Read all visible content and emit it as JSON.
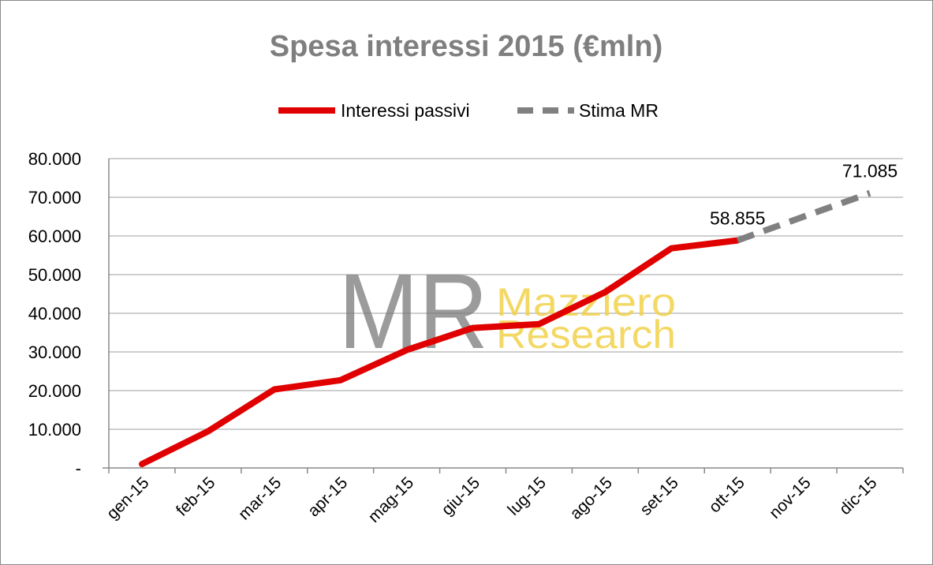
{
  "chart_data": {
    "type": "line",
    "title": "Spesa interessi 2015 (€mln)",
    "categories": [
      "gen-15",
      "feb-15",
      "mar-15",
      "apr-15",
      "mag-15",
      "giu-15",
      "lug-15",
      "ago-15",
      "set-15",
      "ott-15",
      "nov-15",
      "dic-15"
    ],
    "yticks": [
      "-",
      "10.000",
      "20.000",
      "30.000",
      "40.000",
      "50.000",
      "60.000",
      "70.000",
      "80.000"
    ],
    "ylim": [
      0,
      80000
    ],
    "grid": true,
    "legend_position": "top",
    "series": [
      {
        "name": "Interessi passivi",
        "color": "#e00000",
        "style": "solid",
        "values": [
          1000,
          9500,
          20300,
          22700,
          30500,
          36200,
          37200,
          45500,
          56800,
          58855,
          null,
          null
        ]
      },
      {
        "name": "Stima MR",
        "color": "#808080",
        "style": "dashed",
        "values": [
          null,
          null,
          null,
          null,
          null,
          null,
          null,
          null,
          null,
          58855,
          65000,
          71085
        ]
      }
    ],
    "data_labels": [
      {
        "category": "ott-15",
        "value": 58855,
        "text": "58.855"
      },
      {
        "category": "dic-15",
        "value": 71085,
        "text": "71.085"
      }
    ]
  },
  "watermark": {
    "logo": "MR",
    "line1": "Mazziero",
    "line2": "Research"
  }
}
